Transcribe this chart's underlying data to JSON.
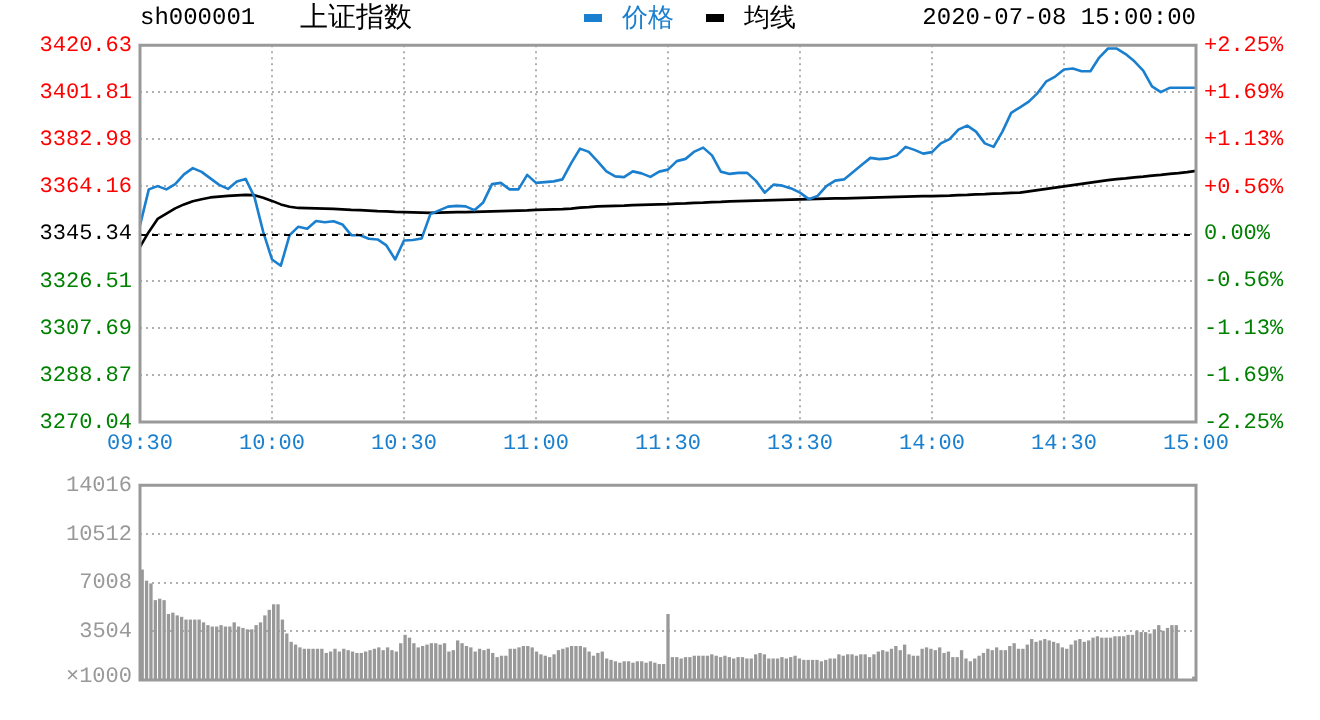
{
  "chart_data": [
    {
      "type": "line",
      "title": "上证指数",
      "subtitle": "sh000001",
      "annotations": [
        "2020-07-08 15:00:00"
      ],
      "legend": "top",
      "grid": true,
      "categories": [
        "09:30",
        null,
        null,
        null,
        null,
        null,
        null,
        null,
        null,
        null,
        null,
        null,
        null,
        null,
        null,
        "10:00",
        null,
        null,
        null,
        null,
        null,
        null,
        null,
        null,
        null,
        null,
        null,
        null,
        null,
        null,
        "10:30",
        null,
        null,
        null,
        null,
        null,
        null,
        null,
        null,
        null,
        null,
        null,
        null,
        null,
        null,
        "11:00",
        null,
        null,
        null,
        null,
        null,
        null,
        null,
        null,
        null,
        null,
        null,
        null,
        null,
        null,
        "11:30",
        null,
        null,
        null,
        null,
        null,
        null,
        null,
        null,
        null,
        null,
        null,
        null,
        null,
        null,
        "13:30",
        null,
        null,
        null,
        null,
        null,
        null,
        null,
        null,
        null,
        null,
        null,
        null,
        null,
        null,
        "14:00",
        null,
        null,
        null,
        null,
        null,
        null,
        null,
        null,
        null,
        null,
        null,
        null,
        null,
        null,
        "14:30",
        null,
        null,
        null,
        null,
        null,
        null,
        null,
        null,
        null,
        null,
        null,
        null,
        null,
        null,
        "15:00"
      ],
      "series": [
        {
          "name": "价格",
          "color": "#1a7fce",
          "values": [
            3348.6,
            3363.0,
            3364.3,
            3363.0,
            3365.1,
            3369.0,
            3371.5,
            3370.0,
            3367.4,
            3364.8,
            3363.2,
            3366.2,
            3367.2,
            3360.0,
            3346.0,
            3335.0,
            3332.5,
            3344.7,
            3348.1,
            3347.3,
            3350.4,
            3349.9,
            3350.3,
            3349.0,
            3344.7,
            3344.7,
            3343.3,
            3343.0,
            3340.6,
            3335.0,
            3342.6,
            3342.8,
            3343.4,
            3353.1,
            3354.6,
            3356.1,
            3356.4,
            3356.2,
            3354.7,
            3357.8,
            3365.1,
            3365.6,
            3363.0,
            3363.0,
            3368.8,
            3365.6,
            3365.9,
            3366.2,
            3367.0,
            3373.5,
            3379.3,
            3378.0,
            3374.2,
            3370.2,
            3368.2,
            3367.9,
            3370.2,
            3369.4,
            3368.0,
            3370.1,
            3370.9,
            3374.3,
            3375.2,
            3378.1,
            3379.7,
            3376.6,
            3370.1,
            3369.2,
            3369.6,
            3369.6,
            3366.4,
            3361.7,
            3364.9,
            3364.5,
            3363.4,
            3361.7,
            3359.1,
            3360.4,
            3364.3,
            3366.5,
            3367.0,
            3369.9,
            3372.8,
            3375.6,
            3375.1,
            3375.4,
            3376.6,
            3380.0,
            3378.8,
            3377.3,
            3377.9,
            3381.4,
            3383.1,
            3386.9,
            3388.5,
            3386.1,
            3381.4,
            3380.0,
            3386.1,
            3393.6,
            3395.8,
            3398.1,
            3401.5,
            3406.2,
            3408.1,
            3410.9,
            3411.3,
            3410.2,
            3410.2,
            3415.7,
            3419.3,
            3419.3,
            3417.1,
            3414.2,
            3410.5,
            3404.2,
            3401.9,
            3403.6,
            3403.6,
            3403.6,
            3403.6
          ]
        },
        {
          "name": "均线",
          "color": "#000000",
          "values": [
            3340.0,
            3346.0,
            3351.2,
            3353.3,
            3355.4,
            3357.0,
            3358.3,
            3359.1,
            3359.8,
            3360.1,
            3360.4,
            3360.6,
            3360.8,
            3360.7,
            3359.7,
            3358.4,
            3357.0,
            3356.1,
            3355.6,
            3355.5,
            3355.4,
            3355.3,
            3355.2,
            3355.0,
            3354.8,
            3354.7,
            3354.5,
            3354.3,
            3354.2,
            3354.0,
            3353.9,
            3353.8,
            3353.7,
            3353.6,
            3353.7,
            3353.8,
            3353.9,
            3353.9,
            3354.0,
            3354.1,
            3354.2,
            3354.3,
            3354.4,
            3354.5,
            3354.6,
            3354.8,
            3354.9,
            3355.0,
            3355.1,
            3355.3,
            3355.7,
            3355.9,
            3356.2,
            3356.3,
            3356.4,
            3356.5,
            3356.7,
            3356.8,
            3356.9,
            3357.0,
            3357.1,
            3357.3,
            3357.4,
            3357.6,
            3357.7,
            3357.9,
            3358.0,
            3358.2,
            3358.3,
            3358.4,
            3358.5,
            3358.6,
            3358.7,
            3358.8,
            3358.9,
            3359.0,
            3359.1,
            3359.2,
            3359.3,
            3359.4,
            3359.4,
            3359.5,
            3359.6,
            3359.7,
            3359.8,
            3359.9,
            3360.0,
            3360.1,
            3360.2,
            3360.3,
            3360.3,
            3360.4,
            3360.5,
            3360.7,
            3360.8,
            3361.0,
            3361.1,
            3361.3,
            3361.4,
            3361.6,
            3361.7,
            3362.2,
            3362.7,
            3363.2,
            3363.7,
            3364.2,
            3364.7,
            3365.2,
            3365.7,
            3366.2,
            3366.7,
            3367.1,
            3367.4,
            3367.8,
            3368.1,
            3368.5,
            3368.8,
            3369.2,
            3369.5,
            3369.9,
            3370.4
          ]
        }
      ],
      "ylim": [
        3270.04,
        3420.63
      ],
      "yticks": [
        3270.04,
        3288.87,
        3307.69,
        3326.51,
        3345.34,
        3364.16,
        3382.98,
        3401.81,
        3420.63
      ],
      "y2lim": [
        -2.25,
        2.25
      ],
      "y2ticks": [
        {
          "value": -2.25,
          "label": "-2.25%"
        },
        {
          "value": -1.69,
          "label": "-1.69%"
        },
        {
          "value": -1.13,
          "label": "-1.13%"
        },
        {
          "value": -0.56,
          "label": "-0.56%"
        },
        {
          "value": 0,
          "label": "0.00%"
        },
        {
          "value": 0.56,
          "label": "+0.56%"
        },
        {
          "value": 1.13,
          "label": "+1.13%"
        },
        {
          "value": 1.69,
          "label": "+1.69%"
        },
        {
          "value": 2.25,
          "label": "+2.25%"
        }
      ],
      "ref_lines": [
        {
          "axis": "y",
          "value": 3345.34,
          "color": "#000000",
          "line_style": "dashed"
        }
      ]
    },
    {
      "type": "bar",
      "color": "#999999",
      "grid": "y",
      "tick_labels": "y",
      "ylabel": "×1000",
      "categories": [
        null,
        null,
        null,
        null,
        null,
        null,
        null,
        null,
        null,
        null,
        null,
        null,
        null,
        null,
        null,
        null,
        null,
        null,
        null,
        null,
        null,
        null,
        null,
        null,
        null,
        null,
        null,
        null,
        null,
        null,
        null,
        null,
        null,
        null,
        null,
        null,
        null,
        null,
        null,
        null,
        null,
        null,
        null,
        null,
        null,
        null,
        null,
        null,
        null,
        null,
        null,
        null,
        null,
        null,
        null,
        null,
        null,
        null,
        null,
        null,
        null,
        null,
        null,
        null,
        null,
        null,
        null,
        null,
        null,
        null,
        null,
        null,
        null,
        null,
        null,
        null,
        null,
        null,
        null,
        null,
        null,
        null,
        null,
        null,
        null,
        null,
        null,
        null,
        null,
        null,
        null,
        null,
        null,
        null,
        null,
        null,
        null,
        null,
        null,
        null,
        null,
        null,
        null,
        null,
        null,
        null,
        null,
        null,
        null,
        null,
        null,
        null,
        null,
        null,
        null,
        null,
        null,
        null,
        null,
        null,
        null,
        null,
        null,
        null,
        null,
        null,
        null,
        null,
        null,
        null,
        null,
        null,
        null,
        null,
        null,
        null,
        null,
        null,
        null,
        null,
        null,
        null,
        null,
        null,
        null,
        null,
        null,
        null,
        null,
        null,
        null,
        null,
        null,
        null,
        null,
        null,
        null,
        null,
        null,
        null,
        null,
        null,
        null,
        null,
        null,
        null,
        null,
        null,
        null,
        null,
        null,
        null,
        null,
        null,
        null,
        null,
        null,
        null,
        null,
        null,
        null,
        null,
        null,
        null,
        null,
        null,
        null,
        null,
        null,
        null,
        null,
        null,
        null,
        null,
        null,
        null,
        null,
        null,
        null,
        null,
        null,
        null,
        null,
        null,
        null,
        null,
        null,
        null,
        null,
        null,
        null,
        null,
        null,
        null,
        null,
        null,
        null,
        null,
        null,
        null,
        null,
        null,
        null,
        null,
        null,
        null,
        null,
        null,
        null,
        null,
        null,
        null,
        null,
        null,
        null,
        null,
        null,
        null,
        null,
        null,
        null
      ],
      "values": [
        7900,
        7100,
        6900,
        5700,
        5800,
        5700,
        4700,
        4800,
        4600,
        4500,
        4300,
        4300,
        4300,
        4300,
        4100,
        3900,
        3800,
        3800,
        3900,
        3800,
        3800,
        4100,
        3800,
        3700,
        3600,
        3600,
        3900,
        4100,
        4600,
        5000,
        5400,
        5400,
        4300,
        3300,
        2700,
        2500,
        2300,
        2200,
        2200,
        2200,
        2200,
        2200,
        1900,
        2000,
        2200,
        2000,
        2200,
        2100,
        2000,
        1900,
        1900,
        2000,
        2100,
        2200,
        2300,
        2100,
        2300,
        2100,
        2000,
        2600,
        3200,
        3000,
        2600,
        2300,
        2400,
        2500,
        2600,
        2600,
        2500,
        2600,
        2000,
        2100,
        2800,
        2600,
        2400,
        2300,
        2000,
        2200,
        2100,
        2200,
        1900,
        1600,
        1700,
        1700,
        2200,
        2200,
        2300,
        2400,
        2400,
        2300,
        2000,
        1800,
        1700,
        1600,
        1800,
        2100,
        2200,
        2300,
        2400,
        2400,
        2400,
        2300,
        2000,
        1700,
        1900,
        2000,
        1500,
        1400,
        1300,
        1200,
        1300,
        1300,
        1200,
        1300,
        1300,
        1200,
        1300,
        1200,
        1100,
        1100,
        4700,
        1600,
        1600,
        1500,
        1600,
        1600,
        1700,
        1700,
        1700,
        1700,
        1800,
        1700,
        1600,
        1700,
        1600,
        1500,
        1600,
        1600,
        1500,
        1500,
        1800,
        1900,
        1800,
        1500,
        1500,
        1500,
        1600,
        1500,
        1600,
        1700,
        1500,
        1400,
        1400,
        1400,
        1400,
        1300,
        1400,
        1500,
        1500,
        1800,
        1700,
        1800,
        1800,
        1700,
        1800,
        1800,
        1600,
        1800,
        2000,
        2100,
        2000,
        2200,
        2400,
        2100,
        2500,
        1800,
        1700,
        1700,
        2200,
        2300,
        2200,
        2100,
        2300,
        1900,
        2000,
        1600,
        1600,
        2100,
        1500,
        1300,
        1500,
        1700,
        1900,
        2200,
        2100,
        2300,
        2100,
        2100,
        2400,
        2600,
        2200,
        2200,
        2500,
        2900,
        2700,
        2800,
        2900,
        2800,
        2700,
        2600,
        2300,
        2200,
        2500,
        2800,
        2900,
        2700,
        2800,
        3000,
        3100,
        3000,
        3000,
        3000,
        3100,
        3100,
        3100,
        3200,
        3200,
        3500,
        3400,
        3400,
        3300,
        3600,
        3900,
        3500,
        3700,
        3900,
        3900,
        null,
        null,
        null,
        200
      ],
      "ylim": [
        0,
        14016
      ],
      "yticks": [
        3504,
        7008,
        10512,
        14016
      ]
    }
  ]
}
